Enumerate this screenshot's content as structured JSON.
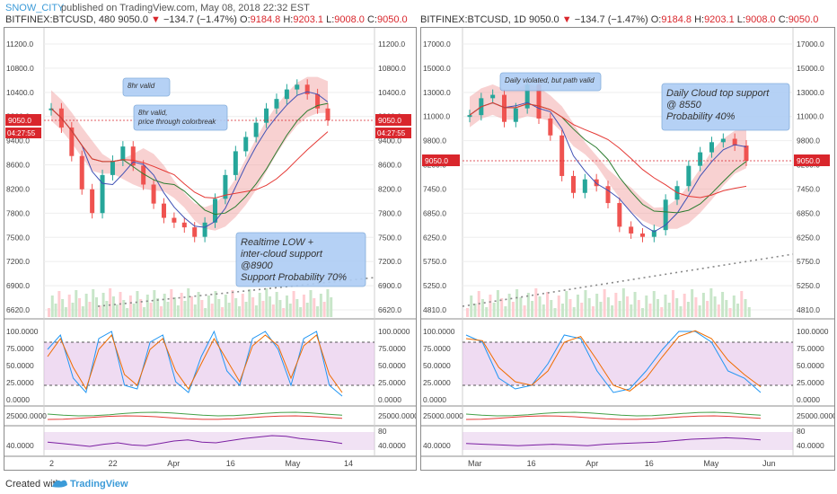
{
  "header": {
    "author": "SNOW_CITY",
    "published": "published on TradingView.com, May 08, 2018 22:32 EST"
  },
  "left_ticker": {
    "symbol": "BITFINEX:BTCUSD, 480",
    "price": "9050.0",
    "change": "−134.7 (−1.47%)",
    "o_label": "O:",
    "o": "9184.8",
    "h_label": "H:",
    "h": "9203.1",
    "l_label": "L:",
    "l": "9008.0",
    "c_label": "C:",
    "c": "9050.0"
  },
  "right_ticker": {
    "symbol": "BITFINEX:BTCUSD, 1D",
    "price": "9050.0",
    "change": "−134.7 (−1.47%)",
    "o_label": "O:",
    "o": "9184.8",
    "h_label": "H:",
    "h": "9203.1",
    "l_label": "L:",
    "l": "9008.0",
    "c_label": "C:",
    "c": "9050.0"
  },
  "footer": {
    "created": "Created with",
    "brand": "TradingView"
  },
  "colors": {
    "up": "#26a69a",
    "down": "#ef5350",
    "cloud_green": "#a5d6a7",
    "cloud_red": "#ef9a9a",
    "stoch_fill": "#e1bee7",
    "accent": "#3c9bd8",
    "callout": "#aecdf4"
  },
  "chart_data": [
    {
      "type": "line",
      "name": "BITFINEX:BTCUSD 480",
      "price_axis": [
        "11200.0",
        "10800.0",
        "10400.0",
        "9800.0",
        "9400.0",
        "8600.0",
        "8200.0",
        "7800.0",
        "7500.0",
        "7200.0",
        "6900.0",
        "6620.0"
      ],
      "price_label": "9050.0",
      "countdown": "04:27:55",
      "x_labels": [
        "2",
        "22",
        "Apr",
        "16",
        "May",
        "14"
      ],
      "close": [
        9300,
        8900,
        8300,
        7600,
        7100,
        7900,
        8200,
        8500,
        8100,
        7700,
        7300,
        7000,
        6900,
        6800,
        6600,
        6900,
        7400,
        7900,
        8400,
        8700,
        9000,
        9300,
        9500,
        9700,
        9800,
        9600,
        9300,
        9050
      ],
      "annotations": [
        "8hr valid",
        "8hr valid,\nprice through colorbreak",
        "Realtime LOW +\ninter-cloud support\n@8900\nSupport Probability 70%"
      ],
      "stoch_axis": [
        "100.0000",
        "75.0000",
        "50.0000",
        "25.0000",
        "0.0000"
      ],
      "stoch_k": [
        70,
        90,
        30,
        10,
        85,
        95,
        20,
        15,
        80,
        90,
        25,
        10,
        60,
        95,
        40,
        20,
        85,
        95,
        70,
        20,
        85,
        95,
        20,
        5
      ],
      "stoch_d": [
        60,
        85,
        45,
        15,
        70,
        90,
        35,
        20,
        70,
        85,
        40,
        15,
        50,
        85,
        55,
        25,
        75,
        90,
        75,
        30,
        75,
        90,
        35,
        10
      ],
      "osc_axis": "25000.0000",
      "rsi_axis": [
        "80",
        "40.0000"
      ],
      "rsi": [
        52,
        48,
        44,
        40,
        46,
        50,
        44,
        42,
        48,
        55,
        58,
        52,
        50,
        56,
        62,
        66,
        70,
        68,
        62,
        58,
        54,
        48
      ]
    },
    {
      "type": "line",
      "name": "BITFINEX:BTCUSD 1D",
      "price_axis": [
        "17000.0",
        "15000.0",
        "13000.0",
        "11000.0",
        "9800.0",
        "8200.0",
        "7450.0",
        "6850.0",
        "6250.0",
        "5750.0",
        "5250.0",
        "4810.0"
      ],
      "price_label": "9050.0",
      "x_labels": [
        "Mar",
        "16",
        "Apr",
        "16",
        "May",
        "Jun"
      ],
      "close": [
        10400,
        10900,
        11000,
        10200,
        10600,
        11300,
        10300,
        9800,
        8600,
        8100,
        8500,
        8300,
        7800,
        7100,
        6900,
        6800,
        7000,
        7900,
        8300,
        8900,
        9300,
        9600,
        9700,
        9500,
        9050
      ],
      "annotations": [
        "Daily violated, but path valid",
        "Daily Cloud top support\n@ 8550\nProbability 40%"
      ],
      "stoch_axis": [
        "100.0000",
        "75.0000",
        "50.0000",
        "25.0000",
        "0.0000"
      ],
      "stoch_k": [
        90,
        80,
        30,
        15,
        20,
        50,
        90,
        85,
        40,
        10,
        15,
        40,
        70,
        95,
        95,
        80,
        40,
        30,
        10
      ],
      "stoch_d": [
        85,
        82,
        45,
        25,
        20,
        40,
        80,
        88,
        55,
        20,
        12,
        30,
        60,
        88,
        96,
        85,
        55,
        35,
        18
      ],
      "osc_axis": "25000.0000",
      "rsi_axis": [
        "80",
        "40.0000"
      ],
      "rsi": [
        48,
        46,
        44,
        42,
        44,
        46,
        44,
        42,
        46,
        48,
        50,
        52,
        56,
        60,
        62,
        64,
        62,
        58
      ]
    }
  ]
}
